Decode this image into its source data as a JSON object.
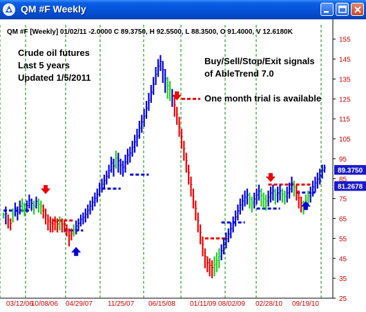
{
  "window": {
    "title": "QM #F Weekly",
    "icon": "app-icon",
    "controls": [
      "minimize-icon",
      "maximize-icon",
      "close-icon"
    ]
  },
  "header_info": "QM #F [Weekly] 01/02/11 -2.0000 C 89.3750, H 92.5500, L 88.3500, O 91.4000, V 12.6180K",
  "notes": {
    "left": [
      "Crude oil futures",
      "Last 5 years",
      "Updated 1/5/2011"
    ],
    "right": [
      "Buy/Sell/Stop/Exit signals",
      "of AbleTrend 7.0",
      "",
      "One month trial is available"
    ]
  },
  "colors": {
    "background": "#ffffff",
    "up_bar": "#0000dd",
    "down_bar": "#ee0000",
    "neutral_bar": "#22cc22",
    "grid": "#008800",
    "axis_text": "#cc0000",
    "price_tag": "#1a1acc"
  },
  "chart_data": {
    "type": "bar",
    "title": "",
    "xlabel": "",
    "ylabel": "",
    "x_tick_labels": [
      "03/12/06",
      "10/08/06",
      "04/29/07",
      "11/25/07",
      "06/15/08",
      "01/11/09",
      "08/02/09",
      "02/28/10",
      "09/19/10"
    ],
    "y_ticks": [
      25,
      35,
      45,
      55,
      65,
      75,
      85,
      95,
      105,
      115,
      125,
      135,
      145,
      155
    ],
    "ylim": [
      25,
      158
    ],
    "price_tags": [
      {
        "label": "89.3750",
        "value": 89.375
      },
      {
        "label": "81.2678",
        "value": 81.2678
      }
    ],
    "series": [
      {
        "values": [
          [
            0,
            68,
            65,
            "g"
          ],
          [
            1,
            71,
            62,
            "b"
          ],
          [
            2,
            67,
            60,
            "r"
          ],
          [
            3,
            65,
            59,
            "r"
          ],
          [
            4,
            70,
            63,
            "g"
          ],
          [
            5,
            73,
            66,
            "b"
          ],
          [
            6,
            71,
            64,
            "b"
          ],
          [
            7,
            74,
            67,
            "b"
          ],
          [
            8,
            75,
            68,
            "g"
          ],
          [
            9,
            73,
            66,
            "g"
          ],
          [
            10,
            74,
            68,
            "b"
          ],
          [
            11,
            77,
            70,
            "b"
          ],
          [
            12,
            75,
            69,
            "b"
          ],
          [
            13,
            74,
            67,
            "g"
          ],
          [
            14,
            76,
            70,
            "b"
          ],
          [
            15,
            75,
            68,
            "g"
          ],
          [
            16,
            74,
            67,
            "g"
          ],
          [
            17,
            72,
            65,
            "r"
          ],
          [
            18,
            70,
            62,
            "r"
          ],
          [
            19,
            67,
            59,
            "r"
          ],
          [
            20,
            66,
            58,
            "r"
          ],
          [
            21,
            65,
            58,
            "r"
          ],
          [
            22,
            66,
            59,
            "r"
          ],
          [
            23,
            65,
            58,
            "r"
          ],
          [
            24,
            66,
            59,
            "g"
          ],
          [
            25,
            65,
            58,
            "r"
          ],
          [
            26,
            64,
            58,
            "r"
          ],
          [
            27,
            62,
            56,
            "r"
          ],
          [
            28,
            60,
            51,
            "r"
          ],
          [
            29,
            60,
            54,
            "r"
          ],
          [
            30,
            62,
            56,
            "g"
          ],
          [
            31,
            64,
            57,
            "b"
          ],
          [
            32,
            65,
            59,
            "b"
          ],
          [
            33,
            67,
            61,
            "b"
          ],
          [
            34,
            68,
            62,
            "b"
          ],
          [
            35,
            70,
            63,
            "b"
          ],
          [
            36,
            72,
            65,
            "b"
          ],
          [
            37,
            74,
            67,
            "b"
          ],
          [
            38,
            76,
            69,
            "b"
          ],
          [
            39,
            78,
            71,
            "b"
          ],
          [
            40,
            80,
            73,
            "b"
          ],
          [
            41,
            83,
            76,
            "b"
          ],
          [
            42,
            85,
            78,
            "b"
          ],
          [
            43,
            87,
            80,
            "b"
          ],
          [
            44,
            89,
            82,
            "b"
          ],
          [
            45,
            92,
            85,
            "b"
          ],
          [
            46,
            96,
            88,
            "b"
          ],
          [
            47,
            95,
            86,
            "b"
          ],
          [
            48,
            99,
            90,
            "g"
          ],
          [
            49,
            98,
            88,
            "b"
          ],
          [
            50,
            95,
            87,
            "b"
          ],
          [
            51,
            94,
            86,
            "b"
          ],
          [
            52,
            97,
            88,
            "b"
          ],
          [
            53,
            100,
            92,
            "b"
          ],
          [
            54,
            101,
            93,
            "b"
          ],
          [
            55,
            104,
            96,
            "b"
          ],
          [
            56,
            107,
            98,
            "b"
          ],
          [
            57,
            110,
            101,
            "b"
          ],
          [
            58,
            114,
            105,
            "b"
          ],
          [
            59,
            117,
            108,
            "b"
          ],
          [
            60,
            120,
            111,
            "b"
          ],
          [
            61,
            124,
            115,
            "b"
          ],
          [
            62,
            128,
            119,
            "b"
          ],
          [
            63,
            132,
            123,
            "b"
          ],
          [
            64,
            136,
            127,
            "b"
          ],
          [
            65,
            141,
            132,
            "b"
          ],
          [
            66,
            145,
            136,
            "b"
          ],
          [
            67,
            147,
            139,
            "b"
          ],
          [
            68,
            144,
            133,
            "b"
          ],
          [
            69,
            140,
            128,
            "b"
          ],
          [
            70,
            136,
            125,
            "g"
          ],
          [
            71,
            134,
            124,
            "g"
          ],
          [
            72,
            130,
            121,
            "b"
          ],
          [
            73,
            126,
            116,
            "r"
          ],
          [
            74,
            121,
            112,
            "r"
          ],
          [
            75,
            116,
            106,
            "r"
          ],
          [
            76,
            110,
            100,
            "r"
          ],
          [
            77,
            104,
            94,
            "r"
          ],
          [
            78,
            98,
            88,
            "r"
          ],
          [
            79,
            92,
            82,
            "r"
          ],
          [
            80,
            86,
            76,
            "r"
          ],
          [
            81,
            80,
            70,
            "r"
          ],
          [
            82,
            74,
            64,
            "r"
          ],
          [
            83,
            68,
            58,
            "r"
          ],
          [
            84,
            62,
            52,
            "r"
          ],
          [
            85,
            56,
            46,
            "r"
          ],
          [
            86,
            50,
            40,
            "r"
          ],
          [
            87,
            46,
            38,
            "r"
          ],
          [
            88,
            45,
            36,
            "r"
          ],
          [
            89,
            44,
            35,
            "r"
          ],
          [
            90,
            46,
            36,
            "g"
          ],
          [
            91,
            48,
            38,
            "g"
          ],
          [
            92,
            50,
            40,
            "g"
          ],
          [
            93,
            52,
            44,
            "b"
          ],
          [
            94,
            55,
            47,
            "b"
          ],
          [
            95,
            58,
            50,
            "b"
          ],
          [
            96,
            60,
            53,
            "b"
          ],
          [
            97,
            63,
            55,
            "b"
          ],
          [
            98,
            66,
            58,
            "b"
          ],
          [
            99,
            69,
            61,
            "b"
          ],
          [
            100,
            72,
            64,
            "b"
          ],
          [
            101,
            75,
            67,
            "b"
          ],
          [
            102,
            77,
            69,
            "b"
          ],
          [
            103,
            79,
            71,
            "b"
          ],
          [
            104,
            80,
            72,
            "b"
          ],
          [
            105,
            78,
            70,
            "g"
          ],
          [
            106,
            76,
            68,
            "g"
          ],
          [
            107,
            78,
            70,
            "b"
          ],
          [
            108,
            80,
            72,
            "b"
          ],
          [
            109,
            82,
            74,
            "b"
          ],
          [
            110,
            80,
            71,
            "g"
          ],
          [
            111,
            78,
            70,
            "g"
          ],
          [
            112,
            77,
            69,
            "g"
          ],
          [
            113,
            79,
            71,
            "b"
          ],
          [
            114,
            81,
            73,
            "b"
          ],
          [
            115,
            82,
            74,
            "b"
          ],
          [
            116,
            80,
            72,
            "g"
          ],
          [
            117,
            81,
            73,
            "b"
          ],
          [
            118,
            82,
            74,
            "b"
          ],
          [
            119,
            80,
            73,
            "g"
          ],
          [
            120,
            79,
            72,
            "g"
          ],
          [
            121,
            81,
            73,
            "b"
          ],
          [
            122,
            83,
            75,
            "b"
          ],
          [
            123,
            86,
            78,
            "b"
          ],
          [
            124,
            84,
            76,
            "g"
          ],
          [
            125,
            82,
            74,
            "r"
          ],
          [
            126,
            79,
            70,
            "r"
          ],
          [
            127,
            76,
            68,
            "r"
          ],
          [
            128,
            74,
            67,
            "g"
          ],
          [
            129,
            77,
            70,
            "g"
          ],
          [
            130,
            79,
            72,
            "g"
          ],
          [
            131,
            81,
            73,
            "b"
          ],
          [
            132,
            84,
            76,
            "b"
          ],
          [
            133,
            86,
            78,
            "b"
          ],
          [
            134,
            88,
            80,
            "b"
          ],
          [
            135,
            90,
            82,
            "b"
          ],
          [
            136,
            92,
            85,
            "b"
          ],
          [
            137,
            92,
            88,
            "b"
          ]
        ]
      }
    ],
    "signal_lines": [
      {
        "x1": 0,
        "x2": 12,
        "value": 69,
        "color": "b"
      },
      {
        "x1": 21,
        "x2": 30,
        "value": 64,
        "color": "r"
      },
      {
        "x1": 26,
        "x2": 34,
        "value": 59,
        "color": "b"
      },
      {
        "x1": 42,
        "x2": 50,
        "value": 80,
        "color": "b"
      },
      {
        "x1": 54,
        "x2": 62,
        "value": 87,
        "color": "b"
      },
      {
        "x1": 76,
        "x2": 84,
        "value": 125,
        "color": "r"
      },
      {
        "x1": 86,
        "x2": 95,
        "value": 55,
        "color": "r"
      },
      {
        "x1": 93,
        "x2": 103,
        "value": 63,
        "color": "b"
      },
      {
        "x1": 108,
        "x2": 118,
        "value": 70,
        "color": "b"
      },
      {
        "x1": 113,
        "x2": 131,
        "value": 82,
        "color": "r"
      },
      {
        "x1": 125,
        "x2": 133,
        "value": 78,
        "color": "b"
      }
    ],
    "arrows": [
      {
        "x": 18,
        "value": 79,
        "dir": "down",
        "color": "r"
      },
      {
        "x": 31,
        "value": 49,
        "dir": "up",
        "color": "b"
      },
      {
        "x": 74,
        "value": 126,
        "dir": "down",
        "color": "r"
      },
      {
        "x": 114,
        "value": 85,
        "dir": "down",
        "color": "r"
      },
      {
        "x": 129,
        "value": 72,
        "dir": "up",
        "color": "b"
      }
    ],
    "grid": "vertical dashed",
    "legend": "none"
  }
}
